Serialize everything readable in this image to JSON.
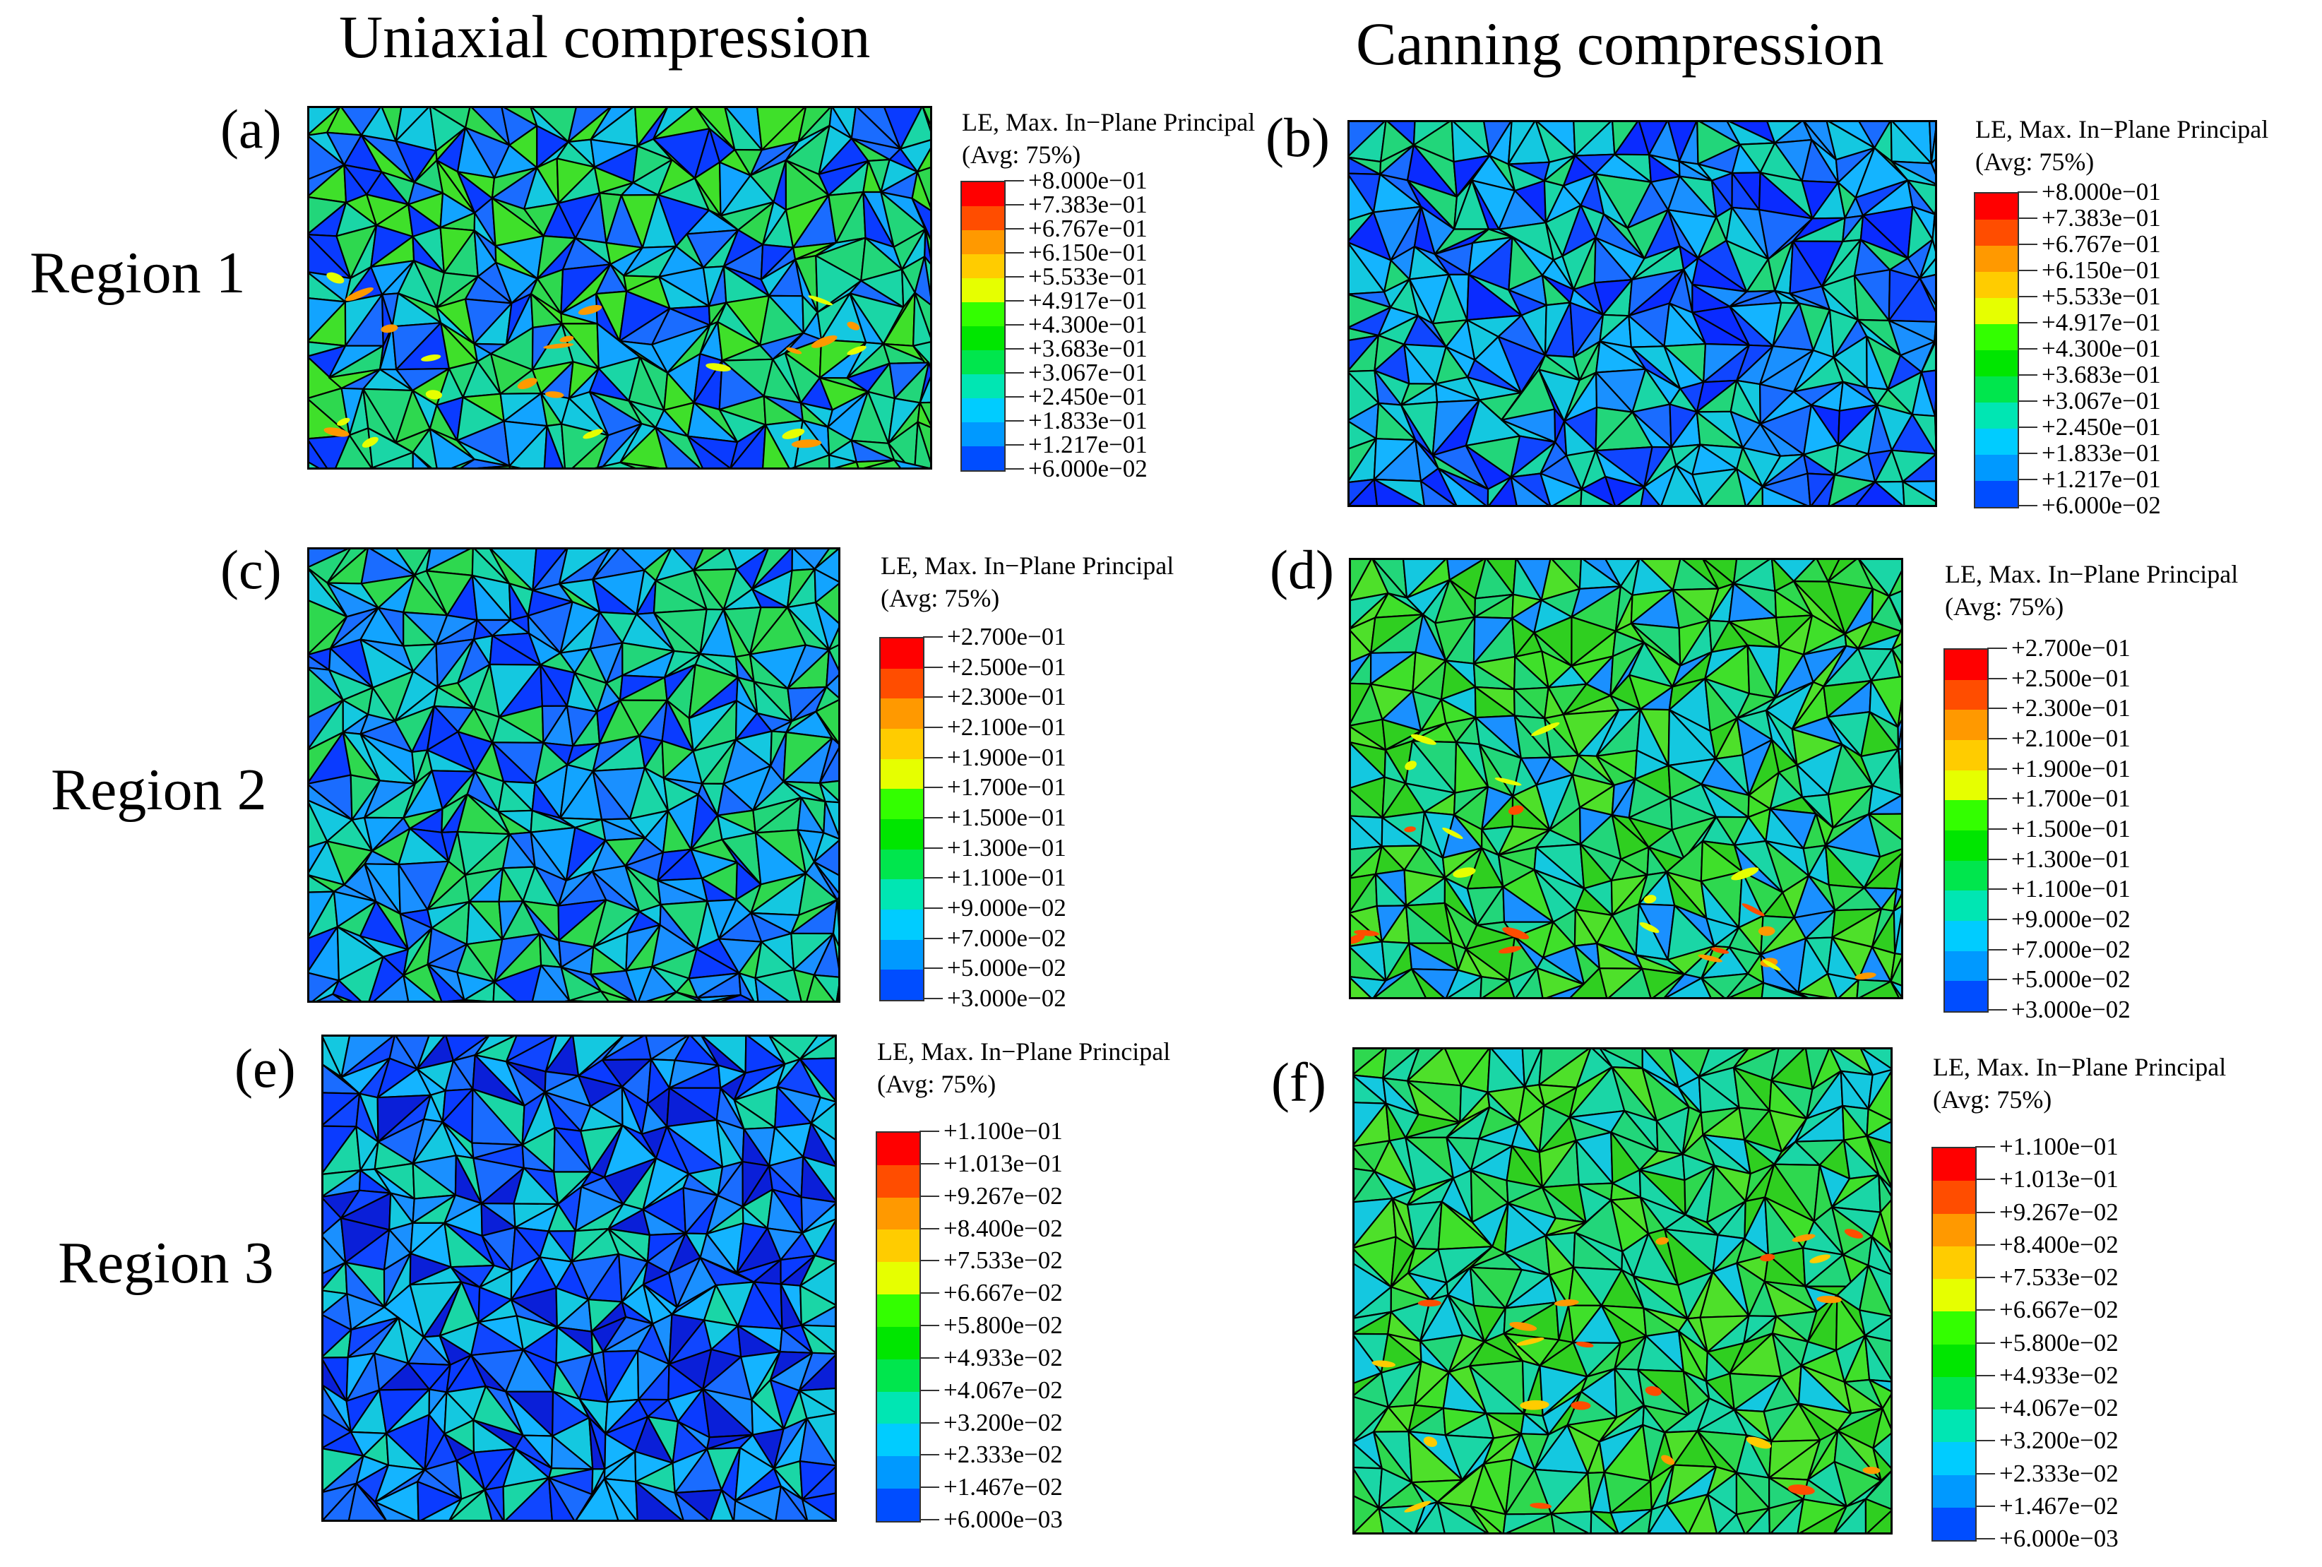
{
  "columns": {
    "left": "Uniaxial compression",
    "right": "Canning compression"
  },
  "rows": [
    "Region 1",
    "Region 2",
    "Region 3"
  ],
  "panels": [
    {
      "id": "a",
      "label": "(a)",
      "legend": {
        "title1": "LE, Max. In−Plane Principal",
        "title2": "(Avg: 75%)",
        "ticks": [
          "+8.000e−01",
          "+7.383e−01",
          "+6.767e−01",
          "+6.150e−01",
          "+5.533e−01",
          "+4.917e−01",
          "+4.300e−01",
          "+3.683e−01",
          "+3.067e−01",
          "+2.450e−01",
          "+1.833e−01",
          "+1.217e−01",
          "+6.000e−02"
        ]
      }
    },
    {
      "id": "b",
      "label": "(b)",
      "legend": {
        "title1": "LE, Max. In−Plane Principal",
        "title2": "(Avg: 75%)",
        "ticks": [
          "+8.000e−01",
          "+7.383e−01",
          "+6.767e−01",
          "+6.150e−01",
          "+5.533e−01",
          "+4.917e−01",
          "+4.300e−01",
          "+3.683e−01",
          "+3.067e−01",
          "+2.450e−01",
          "+1.833e−01",
          "+1.217e−01",
          "+6.000e−02"
        ]
      }
    },
    {
      "id": "c",
      "label": "(c)",
      "legend": {
        "title1": "LE, Max. In−Plane Principal",
        "title2": "(Avg: 75%)",
        "ticks": [
          "+2.700e−01",
          "+2.500e−01",
          "+2.300e−01",
          "+2.100e−01",
          "+1.900e−01",
          "+1.700e−01",
          "+1.500e−01",
          "+1.300e−01",
          "+1.100e−01",
          "+9.000e−02",
          "+7.000e−02",
          "+5.000e−02",
          "+3.000e−02"
        ]
      }
    },
    {
      "id": "d",
      "label": "(d)",
      "legend": {
        "title1": "LE, Max. In−Plane Principal",
        "title2": "(Avg: 75%)",
        "ticks": [
          "+2.700e−01",
          "+2.500e−01",
          "+2.300e−01",
          "+2.100e−01",
          "+1.900e−01",
          "+1.700e−01",
          "+1.500e−01",
          "+1.300e−01",
          "+1.100e−01",
          "+9.000e−02",
          "+7.000e−02",
          "+5.000e−02",
          "+3.000e−02"
        ]
      }
    },
    {
      "id": "e",
      "label": "(e)",
      "legend": {
        "title1": "LE, Max. In−Plane Principal",
        "title2": "(Avg: 75%)",
        "ticks": [
          "+1.100e−01",
          "+1.013e−01",
          "+9.267e−02",
          "+8.400e−02",
          "+7.533e−02",
          "+6.667e−02",
          "+5.800e−02",
          "+4.933e−02",
          "+4.067e−02",
          "+3.200e−02",
          "+2.333e−02",
          "+1.467e−02",
          "+6.000e−03"
        ]
      }
    },
    {
      "id": "f",
      "label": "(f)",
      "legend": {
        "title1": "LE, Max. In−Plane Principal",
        "title2": "(Avg: 75%)",
        "ticks": [
          "+1.100e−01",
          "+1.013e−01",
          "+9.267e−02",
          "+8.400e−02",
          "+7.533e−02",
          "+6.667e−02",
          "+5.800e−02",
          "+4.933e−02",
          "+4.067e−02",
          "+3.200e−02",
          "+2.333e−02",
          "+1.467e−02",
          "+6.000e−03"
        ]
      }
    }
  ],
  "colors": {
    "legend_top_to_bottom": [
      "#ff0000",
      "#ff4d00",
      "#ff9900",
      "#ffcc00",
      "#e6ff00",
      "#33ff00",
      "#00e600",
      "#00e64d",
      "#00e6b3",
      "#00ccff",
      "#0099ff",
      "#004dff",
      "#0000ff"
    ],
    "mesh_lines": "#000000"
  }
}
